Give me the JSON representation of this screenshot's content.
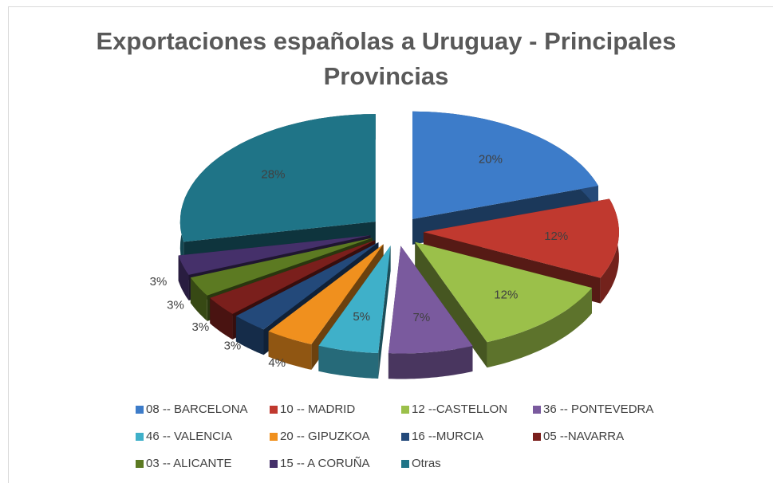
{
  "chart_data": {
    "type": "pie3d",
    "title": "Exportaciones españolas a Uruguay - Principales Provincias",
    "categories": [
      "08 -- BARCELONA",
      "10 -- MADRID",
      "12 --CASTELLON",
      "36 -- PONTEVEDRA",
      "46 -- VALENCIA",
      "20 -- GIPUZKOA",
      "16 --MURCIA",
      "05 --NAVARRA",
      "03 -- ALICANTE",
      "15 -- A CORUÑA",
      "Otras"
    ],
    "values": [
      20,
      12,
      12,
      7,
      5,
      4,
      3,
      3,
      3,
      3,
      28
    ],
    "value_labels": [
      "20%",
      "12%",
      "12%",
      "7%",
      "5%",
      "4%",
      "3%",
      "3%",
      "3%",
      "3%",
      "28%"
    ],
    "colors": [
      "#3d7cc9",
      "#c0392f",
      "#9bc04a",
      "#7a5a9e",
      "#3fb0c9",
      "#f0901e",
      "#23497a",
      "#7a1f1c",
      "#5c7a22",
      "#45306a",
      "#1f7487"
    ]
  }
}
